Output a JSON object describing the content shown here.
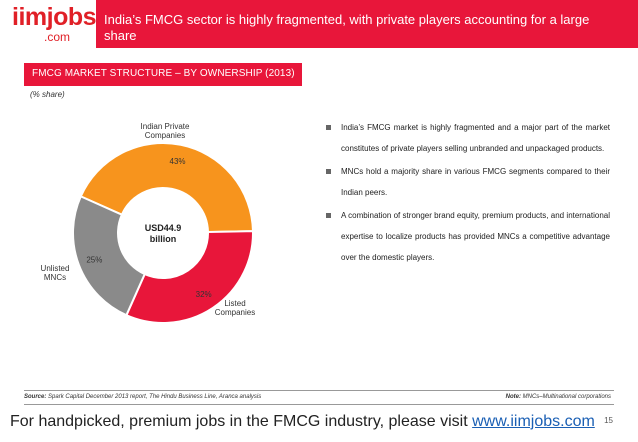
{
  "logo": {
    "main": "iimjobs",
    "sub": ".com"
  },
  "header": {
    "title": "India’s FMCG sector is highly fragmented, with private players accounting for a large share"
  },
  "section": {
    "title": "FMCG MARKET STRUCTURE – BY OWNERSHIP (2013)",
    "unit_note": "(% share)"
  },
  "chart_data": {
    "type": "pie",
    "donut": true,
    "center_label": [
      "USD44.9",
      "billion"
    ],
    "categories": [
      "Indian Private Companies",
      "Listed Companies",
      "Unlisted MNCs"
    ],
    "values": [
      43,
      32,
      25
    ],
    "value_labels": [
      "43%",
      "32%",
      "25%"
    ],
    "category_labels": [
      [
        "Indian Private",
        "Companies"
      ],
      [
        "Listed",
        "Companies"
      ],
      [
        "Unlisted",
        "MNCs"
      ]
    ],
    "colors": [
      "#f7941d",
      "#e8163a",
      "#8a8a8a"
    ]
  },
  "bullets": [
    "India’s FMCG market is highly fragmented and a major part of the market constitutes of private players selling unbranded and unpackaged products.",
    "MNCs hold a majority share in various FMCG segments compared to their Indian peers.",
    "A combination of stronger brand equity, premium products, and international expertise to localize products has provided MNCs a competitive advantage over the domestic players."
  ],
  "source": {
    "label": "Source:",
    "text": "Spark Capital December 2013 report, The Hindu Business Line, Aranca analysis"
  },
  "note": {
    "label": "Note:",
    "text": "MNCs–Multinational corporations"
  },
  "footer": {
    "text": "For handpicked, premium jobs in the FMCG industry, please visit ",
    "link": "www.iimjobs.com"
  },
  "page_number": "15"
}
